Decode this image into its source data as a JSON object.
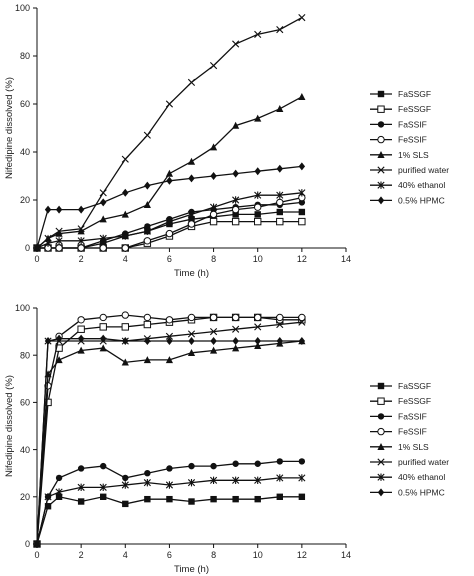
{
  "chart_data": [
    {
      "type": "line",
      "xlabel": "Time (h)",
      "ylabel": "Nifedipine dissolved (%)",
      "xlim": [
        0,
        14
      ],
      "ylim": [
        0,
        100
      ],
      "xticks": [
        0,
        2,
        4,
        6,
        8,
        10,
        12,
        14
      ],
      "yticks": [
        0,
        20,
        40,
        60,
        80,
        100
      ],
      "legend_position": "right",
      "series": [
        {
          "name": "FaSSGF",
          "marker": "square-filled",
          "x": [
            0,
            0.5,
            1,
            2,
            3,
            4,
            5,
            6,
            7,
            8,
            9,
            10,
            11,
            12
          ],
          "y": [
            0,
            0,
            0,
            0,
            2,
            5,
            7,
            10,
            12,
            13,
            14,
            14,
            15,
            15
          ]
        },
        {
          "name": "FeSSGF",
          "marker": "square-open",
          "x": [
            0,
            0.5,
            1,
            2,
            3,
            4,
            5,
            6,
            7,
            8,
            9,
            10,
            11,
            12
          ],
          "y": [
            0,
            0,
            0,
            0,
            0,
            0,
            2,
            5,
            9,
            11,
            11,
            11,
            11,
            11
          ]
        },
        {
          "name": "FaSSIF",
          "marker": "circle-filled",
          "x": [
            0,
            0.5,
            1,
            2,
            3,
            4,
            5,
            6,
            7,
            8,
            9,
            10,
            11,
            12
          ],
          "y": [
            0,
            0,
            0,
            0,
            3,
            6,
            9,
            12,
            15,
            16,
            17,
            18,
            18,
            19
          ]
        },
        {
          "name": "FeSSIF",
          "marker": "circle-open",
          "x": [
            0,
            0.5,
            1,
            2,
            3,
            4,
            5,
            6,
            7,
            8,
            9,
            10,
            11,
            12
          ],
          "y": [
            0,
            0,
            0,
            0,
            0,
            0,
            3,
            6,
            10,
            14,
            16,
            17,
            19,
            21
          ]
        },
        {
          "name": "1% SLS",
          "marker": "triangle-filled",
          "x": [
            0,
            0.5,
            1,
            2,
            3,
            4,
            5,
            6,
            7,
            8,
            9,
            10,
            11,
            12
          ],
          "y": [
            0,
            4,
            6,
            7,
            12,
            14,
            18,
            31,
            36,
            42,
            51,
            54,
            58,
            63
          ]
        },
        {
          "name": "purified water",
          "marker": "x",
          "x": [
            0,
            0.5,
            1,
            2,
            3,
            4,
            5,
            6,
            7,
            8,
            9,
            10,
            11,
            12
          ],
          "y": [
            0,
            4,
            7,
            8,
            23,
            37,
            47,
            60,
            69,
            76,
            85,
            89,
            91,
            96
          ]
        },
        {
          "name": "40% ethanol",
          "marker": "star",
          "x": [
            0,
            0.5,
            1,
            2,
            3,
            4,
            5,
            6,
            7,
            8,
            9,
            10,
            11,
            12
          ],
          "y": [
            0,
            2,
            3,
            3,
            4,
            5,
            7,
            11,
            14,
            17,
            20,
            22,
            22,
            23
          ]
        },
        {
          "name": "0.5% HPMC",
          "marker": "diamond-filled",
          "x": [
            0,
            0.5,
            1,
            2,
            3,
            4,
            5,
            6,
            7,
            8,
            9,
            10,
            11,
            12
          ],
          "y": [
            0,
            16,
            16,
            16,
            19,
            23,
            26,
            28,
            29,
            30,
            31,
            32,
            33,
            34
          ]
        }
      ]
    },
    {
      "type": "line",
      "xlabel": "Time (h)",
      "ylabel": "Nifedipine dissolved (%)",
      "xlim": [
        0,
        14
      ],
      "ylim": [
        0,
        100
      ],
      "xticks": [
        0,
        2,
        4,
        6,
        8,
        10,
        12,
        14
      ],
      "yticks": [
        0,
        20,
        40,
        60,
        80,
        100
      ],
      "legend_position": "right",
      "series": [
        {
          "name": "FaSSGF",
          "marker": "square-filled",
          "x": [
            0,
            0.5,
            1,
            2,
            3,
            4,
            5,
            6,
            7,
            8,
            9,
            10,
            11,
            12
          ],
          "y": [
            0,
            16,
            20,
            18,
            20,
            17,
            19,
            19,
            18,
            19,
            19,
            19,
            20,
            20
          ]
        },
        {
          "name": "FeSSGF",
          "marker": "square-open",
          "x": [
            0,
            0.5,
            1,
            2,
            3,
            4,
            5,
            6,
            7,
            8,
            9,
            10,
            11,
            12
          ],
          "y": [
            0,
            60,
            83,
            91,
            92,
            92,
            93,
            94,
            95,
            96,
            96,
            96,
            95,
            95
          ]
        },
        {
          "name": "FaSSIF",
          "marker": "circle-filled",
          "x": [
            0,
            0.5,
            1,
            2,
            3,
            4,
            5,
            6,
            7,
            8,
            9,
            10,
            11,
            12
          ],
          "y": [
            0,
            20,
            28,
            32,
            33,
            28,
            30,
            32,
            33,
            33,
            34,
            34,
            35,
            35
          ]
        },
        {
          "name": "FeSSIF",
          "marker": "circle-open",
          "x": [
            0,
            0.5,
            1,
            2,
            3,
            4,
            5,
            6,
            7,
            8,
            9,
            10,
            11,
            12
          ],
          "y": [
            0,
            67,
            88,
            95,
            96,
            97,
            96,
            95,
            96,
            96,
            96,
            96,
            96,
            96
          ]
        },
        {
          "name": "1% SLS",
          "marker": "triangle-filled",
          "x": [
            0,
            0.5,
            1,
            2,
            3,
            4,
            5,
            6,
            7,
            8,
            9,
            10,
            11,
            12
          ],
          "y": [
            0,
            72,
            78,
            82,
            83,
            77,
            78,
            78,
            81,
            82,
            83,
            84,
            85,
            86
          ]
        },
        {
          "name": "purified water",
          "marker": "x",
          "x": [
            0,
            0.5,
            1,
            2,
            3,
            4,
            5,
            6,
            7,
            8,
            9,
            10,
            11,
            12
          ],
          "y": [
            0,
            86,
            86,
            86,
            86,
            86,
            87,
            88,
            89,
            90,
            91,
            92,
            93,
            94
          ]
        },
        {
          "name": "40% ethanol",
          "marker": "star",
          "x": [
            0,
            0.5,
            1,
            2,
            3,
            4,
            5,
            6,
            7,
            8,
            9,
            10,
            11,
            12
          ],
          "y": [
            0,
            20,
            22,
            24,
            24,
            25,
            26,
            25,
            26,
            27,
            27,
            27,
            28,
            28
          ]
        },
        {
          "name": "0.5% HPMC",
          "marker": "diamond-filled",
          "x": [
            0,
            0.5,
            1,
            2,
            3,
            4,
            5,
            6,
            7,
            8,
            9,
            10,
            11,
            12
          ],
          "y": [
            0,
            86,
            87,
            87,
            87,
            86,
            86,
            86,
            86,
            86,
            86,
            86,
            86,
            86
          ]
        }
      ]
    }
  ]
}
